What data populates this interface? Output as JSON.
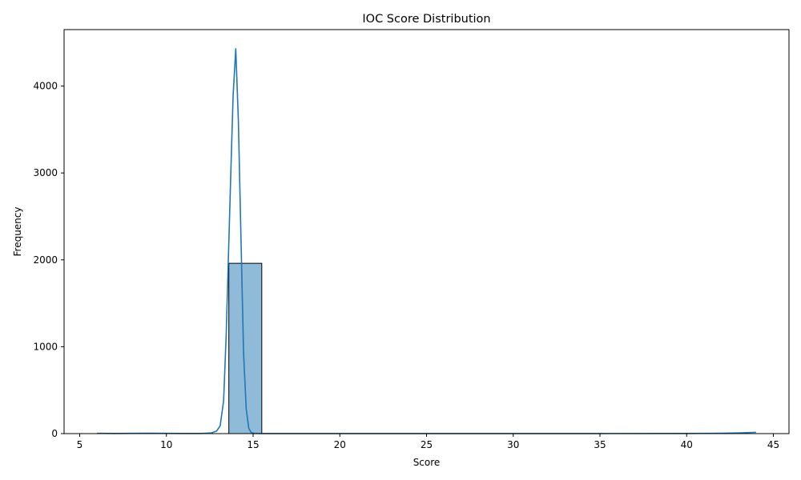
{
  "chart_data": {
    "type": "bar",
    "title": "IOC Score Distribution",
    "xlabel": "Score",
    "ylabel": "Frequency",
    "xlim": [
      4.1,
      45.9
    ],
    "ylim": [
      0,
      4650
    ],
    "xticks": [
      5,
      10,
      15,
      20,
      25,
      30,
      35,
      40,
      45
    ],
    "yticks": [
      0,
      1000,
      2000,
      3000,
      4000
    ],
    "bar_color": "#1f77b4",
    "bar_fill_opacity": 0.5,
    "bar_edge_color": "#000000",
    "line_color": "#1f77b4",
    "grid": false,
    "histogram": {
      "bins": [
        {
          "x0": 13.6,
          "x1": 15.5,
          "count": 1960
        }
      ]
    },
    "kde": {
      "x": [
        6.0,
        7.0,
        8.0,
        9.0,
        10.0,
        11.0,
        12.0,
        12.6,
        12.9,
        13.1,
        13.3,
        13.45,
        13.6,
        13.75,
        13.85,
        14.0,
        14.15,
        14.3,
        14.45,
        14.6,
        14.75,
        14.9,
        15.1,
        15.5,
        20.0,
        25.0,
        30.0,
        35.0,
        40.0,
        42.0,
        43.0,
        44.0
      ],
      "y": [
        3,
        2,
        3,
        4,
        3,
        2,
        2,
        8,
        30,
        90,
        380,
        1150,
        2200,
        3250,
        3900,
        4430,
        3600,
        2250,
        930,
        290,
        60,
        10,
        2,
        1,
        1,
        1,
        1,
        1,
        2,
        4,
        8,
        15
      ]
    }
  }
}
